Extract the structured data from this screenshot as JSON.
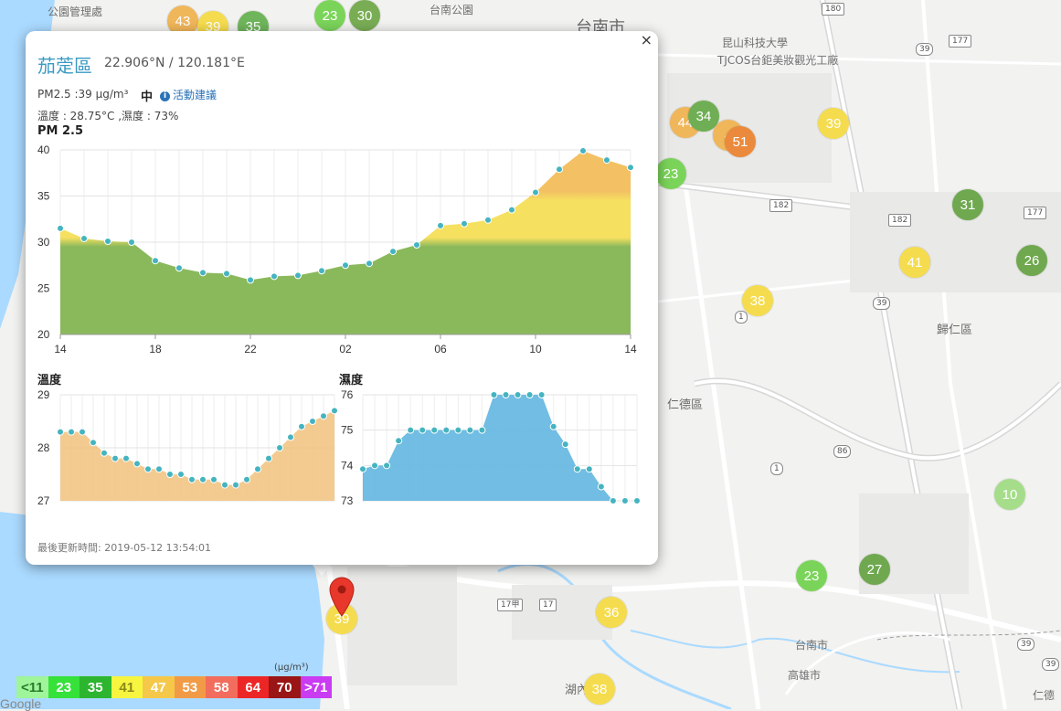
{
  "map": {
    "labels": [
      {
        "id": "park-office",
        "text": "公園管理處"
      },
      {
        "id": "tainan-park",
        "text": "台南公園"
      },
      {
        "id": "tainan-city",
        "text": "台南市"
      },
      {
        "id": "kunshan",
        "text": "昆山科技大學"
      },
      {
        "id": "tjcos",
        "text": "TJCOS台鉅美妝觀光工廠"
      },
      {
        "id": "guiren",
        "text": "歸仁區"
      },
      {
        "id": "rende",
        "text": "仁德區"
      },
      {
        "id": "tainan-city2",
        "text": "台南市"
      },
      {
        "id": "kaohsiung",
        "text": "高雄市"
      },
      {
        "id": "hunei",
        "text": "湖內"
      },
      {
        "id": "renwu",
        "text": "仁德"
      }
    ],
    "road_shields": [
      "180",
      "177",
      "39",
      "182",
      "182",
      "177",
      "39",
      "1",
      "1",
      "86",
      "17甲",
      "17",
      "39",
      "39"
    ],
    "markers": [
      {
        "value": "43",
        "color": "#f0b65a"
      },
      {
        "value": "39",
        "color": "#f5dc4e"
      },
      {
        "value": "35",
        "color": "#6fb55b"
      },
      {
        "value": "23",
        "color": "#7bd45a"
      },
      {
        "value": "30",
        "color": "#79ad54"
      },
      {
        "value": "44",
        "color": "#f0b65a"
      },
      {
        "value": "34",
        "color": "#6fae54"
      },
      {
        "value": "4",
        "color": "#f0b65a"
      },
      {
        "value": "51",
        "color": "#eb8a3c"
      },
      {
        "value": "39",
        "color": "#f5dc4e"
      },
      {
        "value": "23",
        "color": "#7bd45a"
      },
      {
        "value": "31",
        "color": "#6fa84f"
      },
      {
        "value": "41",
        "color": "#f5dc4e"
      },
      {
        "value": "26",
        "color": "#6fa84f"
      },
      {
        "value": "38",
        "color": "#f5dc4e"
      },
      {
        "value": "10",
        "color": "#a5dd8a"
      },
      {
        "value": "23",
        "color": "#7bd45a"
      },
      {
        "value": "27",
        "color": "#6fa84f"
      },
      {
        "value": "36",
        "color": "#f5dc4e"
      },
      {
        "value": "39",
        "color": "#f5dc4e"
      },
      {
        "value": "38",
        "color": "#f5dc4e"
      }
    ],
    "legend": {
      "unit": "(μg/m³)",
      "items": [
        {
          "label": "<11",
          "color": "#9ff59a"
        },
        {
          "label": "23",
          "color": "#36e13a"
        },
        {
          "label": "35",
          "color": "#2db52f"
        },
        {
          "label": "41",
          "color": "#f7f53f"
        },
        {
          "label": "47",
          "color": "#f5c84a"
        },
        {
          "label": "53",
          "color": "#f29b47"
        },
        {
          "label": "58",
          "color": "#f26d5d"
        },
        {
          "label": "64",
          "color": "#ec2626"
        },
        {
          "label": "70",
          "color": "#9a1515"
        },
        {
          "label": ">71",
          "color": "#c93cf2"
        }
      ]
    },
    "google": "Google"
  },
  "popup": {
    "title": "茄萣區",
    "coords": "22.906°N / 120.181°E",
    "pm_text": "PM2.5 :39 μg/m³",
    "level": "中",
    "advice": "活動建議",
    "temp_hum": "溫度 : 28.75°C ,濕度 : 73%",
    "pm_chart_title": "PM 2.5",
    "temp_title": "溫度",
    "hum_title": "濕度",
    "updated": "最後更新時間: 2019-05-12 13:54:01",
    "close": "×"
  },
  "chart_data": [
    {
      "type": "area",
      "title": "PM 2.5",
      "ylim": [
        20,
        40
      ],
      "yticks": [
        "20",
        "25",
        "30",
        "35",
        "40"
      ],
      "xticks": [
        "14",
        "18",
        "22",
        "02",
        "06",
        "10",
        "14"
      ],
      "bands": [
        {
          "from": 20,
          "to": 30,
          "color": "#8ab95c"
        },
        {
          "from": 30,
          "to": 35,
          "color": "#f6e060"
        },
        {
          "from": 35,
          "to": 40,
          "color": "#f3c163"
        }
      ],
      "values": [
        31.5,
        30.4,
        30.1,
        30.0,
        28.0,
        27.2,
        26.7,
        26.6,
        25.9,
        26.3,
        26.4,
        26.9,
        27.5,
        27.7,
        29.0,
        29.7,
        31.8,
        32.0,
        32.4,
        33.5,
        35.4,
        37.9,
        39.9,
        38.9,
        38.1
      ]
    },
    {
      "type": "area",
      "title": "溫度",
      "ylim": [
        27,
        29
      ],
      "yticks": [
        "27",
        "28",
        "29"
      ],
      "color": "#f1c27e",
      "values": [
        28.3,
        28.3,
        28.3,
        28.1,
        27.9,
        27.8,
        27.8,
        27.7,
        27.6,
        27.6,
        27.5,
        27.5,
        27.4,
        27.4,
        27.4,
        27.3,
        27.3,
        27.4,
        27.6,
        27.8,
        28.0,
        28.2,
        28.4,
        28.5,
        28.6,
        28.7
      ]
    },
    {
      "type": "area",
      "title": "濕度",
      "ylim": [
        73,
        76
      ],
      "yticks": [
        "73",
        "74",
        "75",
        "76"
      ],
      "color": "#62b6e0",
      "values": [
        73.9,
        74.0,
        74.0,
        74.7,
        75.0,
        75.0,
        75.0,
        75.0,
        75.0,
        75.0,
        75.0,
        76.0,
        76.0,
        76.0,
        76.0,
        76.0,
        75.1,
        74.6,
        73.9,
        73.9,
        73.4,
        73.0,
        73.0,
        73.0
      ]
    }
  ]
}
